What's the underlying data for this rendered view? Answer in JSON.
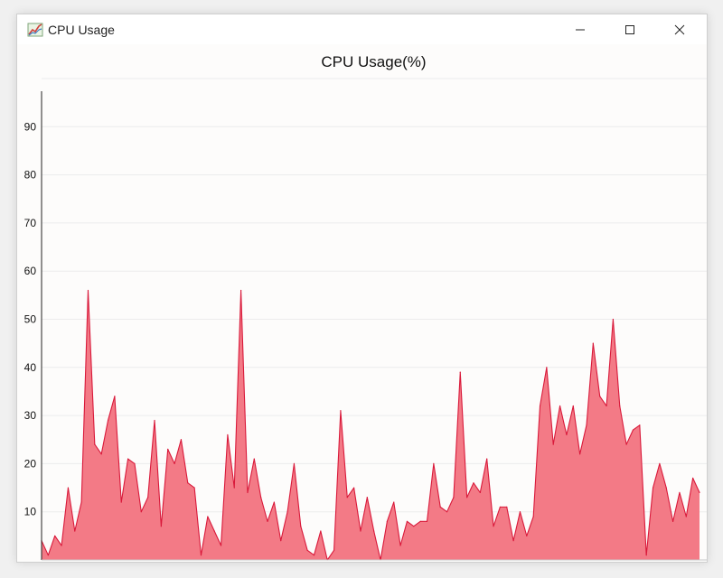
{
  "window": {
    "title": "CPU Usage",
    "app_icon": "chart-app-icon",
    "controls": {
      "minimize_icon": "minimize-icon",
      "maximize_icon": "maximize-icon",
      "close_icon": "close-icon"
    }
  },
  "chart_data": {
    "type": "area",
    "title": "CPU Usage(%)",
    "xlabel": "",
    "ylabel": "",
    "ylim": [
      0,
      100
    ],
    "yticks": [
      10,
      20,
      30,
      40,
      50,
      60,
      70,
      80,
      90
    ],
    "grid": true,
    "legend": "none",
    "fill_color": "#f37a86",
    "line_color": "#d9193a",
    "series": [
      {
        "values": [
          4,
          1,
          5,
          3,
          15,
          6,
          12,
          56,
          24,
          22,
          29,
          34,
          12,
          21,
          20,
          10,
          13,
          29,
          7,
          23,
          20,
          25,
          16,
          15,
          1,
          9,
          6,
          3,
          26,
          15,
          56,
          14,
          21,
          13,
          8,
          12,
          4,
          10,
          20,
          7,
          2,
          1,
          6,
          0,
          2,
          31,
          13,
          15,
          6,
          13,
          6,
          0,
          8,
          12,
          3,
          8,
          7,
          8,
          8,
          20,
          11,
          10,
          13,
          39,
          13,
          16,
          14,
          21,
          7,
          11,
          11,
          4,
          10,
          5,
          9,
          32,
          40,
          24,
          32,
          26,
          32,
          22,
          28,
          45,
          34,
          32,
          50,
          32,
          24,
          27,
          28,
          1,
          15,
          20,
          15,
          8,
          14,
          9,
          17,
          14
        ]
      }
    ]
  }
}
